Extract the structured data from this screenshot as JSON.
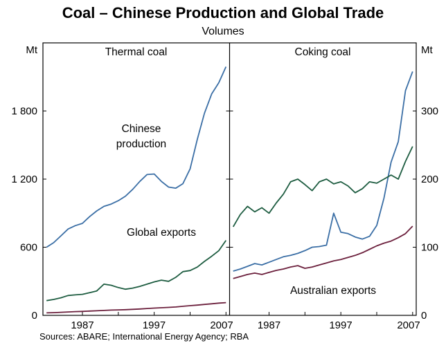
{
  "title": "Coal – Chinese Production and Global Trade",
  "subtitle": "Volumes",
  "sources": "Sources: ABARE; International Energy Agency; RBA",
  "panel_titles": {
    "left": "Thermal coal",
    "right": "Coking coal"
  },
  "axes": {
    "left_unit": "Mt",
    "right_unit": "Mt",
    "left_ticks": [
      "0",
      "600",
      "1 200",
      "1 800"
    ],
    "right_ticks": [
      "0",
      "100",
      "200",
      "300"
    ],
    "x_ticks": [
      "1987",
      "1997",
      "2007"
    ]
  },
  "annotations": {
    "chinese_line1": "Chinese",
    "chinese_line2": "production",
    "global_exports": "Global exports",
    "australian_exports": "Australian exports"
  },
  "colors": {
    "chinese": "#3a6ea5",
    "global": "#1d5c40",
    "australian": "#6b1f3c"
  },
  "chart_data": [
    {
      "type": "line",
      "panel": "Thermal coal",
      "ylabel": "Mt",
      "ylim": [
        0,
        2400
      ],
      "yticks": [
        0,
        600,
        1200,
        1800
      ],
      "x": [
        1982,
        1983,
        1984,
        1985,
        1986,
        1987,
        1988,
        1989,
        1990,
        1991,
        1992,
        1993,
        1994,
        1995,
        1996,
        1997,
        1998,
        1999,
        2000,
        2001,
        2002,
        2003,
        2004,
        2005,
        2006,
        2007
      ],
      "series": [
        {
          "name": "Chinese production",
          "color": "#3a6ea5",
          "values": [
            600,
            640,
            700,
            760,
            790,
            810,
            870,
            920,
            960,
            980,
            1010,
            1050,
            1110,
            1180,
            1240,
            1245,
            1180,
            1130,
            1120,
            1160,
            1290,
            1550,
            1780,
            1950,
            2050,
            2190
          ]
        },
        {
          "name": "Global exports",
          "color": "#1d5c40",
          "values": [
            130,
            140,
            155,
            175,
            180,
            185,
            200,
            215,
            275,
            265,
            245,
            230,
            240,
            255,
            275,
            295,
            310,
            300,
            335,
            385,
            395,
            425,
            475,
            520,
            570,
            660
          ]
        },
        {
          "name": "Australian exports",
          "color": "#6b1f3c",
          "values": [
            22,
            24,
            27,
            30,
            33,
            35,
            38,
            40,
            43,
            46,
            48,
            50,
            53,
            56,
            60,
            64,
            67,
            70,
            74,
            80,
            85,
            90,
            96,
            102,
            108,
            112
          ]
        }
      ]
    },
    {
      "type": "line",
      "panel": "Coking coal",
      "ylabel": "Mt",
      "ylim": [
        0,
        400
      ],
      "yticks": [
        0,
        100,
        200,
        300
      ],
      "x": [
        1982,
        1983,
        1984,
        1985,
        1986,
        1987,
        1988,
        1989,
        1990,
        1991,
        1992,
        1993,
        1994,
        1995,
        1996,
        1997,
        1998,
        1999,
        2000,
        2001,
        2002,
        2003,
        2004,
        2005,
        2006,
        2007
      ],
      "series": [
        {
          "name": "Chinese production",
          "color": "#3a6ea5",
          "values": [
            65,
            68,
            72,
            76,
            74,
            78,
            82,
            86,
            88,
            91,
            95,
            100,
            101,
            103,
            150,
            122,
            120,
            115,
            112,
            116,
            132,
            172,
            225,
            255,
            330,
            358
          ]
        },
        {
          "name": "Global exports",
          "color": "#1d5c40",
          "values": [
            130,
            148,
            160,
            152,
            158,
            150,
            165,
            178,
            196,
            200,
            192,
            183,
            196,
            200,
            193,
            196,
            190,
            180,
            186,
            196,
            194,
            200,
            206,
            200,
            226,
            248
          ]
        },
        {
          "name": "Australian exports",
          "color": "#6b1f3c",
          "values": [
            54,
            57,
            60,
            62,
            60,
            63,
            66,
            68,
            71,
            73,
            69,
            71,
            74,
            77,
            80,
            82,
            85,
            88,
            92,
            97,
            102,
            106,
            109,
            114,
            120,
            131
          ]
        }
      ]
    }
  ]
}
